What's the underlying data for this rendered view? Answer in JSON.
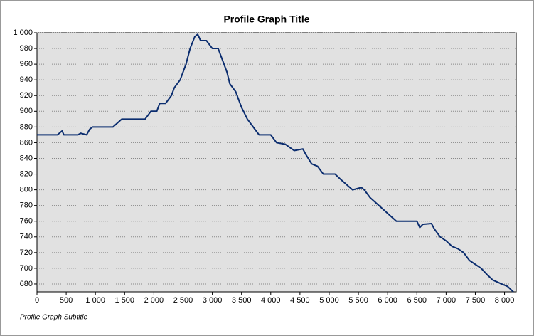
{
  "chart_data": {
    "type": "line",
    "title": "Profile Graph Title",
    "subtitle": "Profile Graph Subtitle",
    "color": "#0b2d6f",
    "grid": true,
    "x": [
      0,
      350,
      430,
      460,
      700,
      750,
      850,
      900,
      950,
      1300,
      1450,
      1850,
      1950,
      2050,
      2100,
      2200,
      2300,
      2350,
      2450,
      2550,
      2620,
      2700,
      2750,
      2800,
      2900,
      3000,
      3100,
      3150,
      3250,
      3300,
      3400,
      3500,
      3600,
      3700,
      3800,
      4000,
      4100,
      4250,
      4400,
      4550,
      4600,
      4700,
      4800,
      4900,
      5100,
      5200,
      5400,
      5550,
      5600,
      5700,
      5850,
      6000,
      6150,
      6500,
      6550,
      6600,
      6750,
      6800,
      6900,
      7000,
      7100,
      7200,
      7300,
      7400,
      7600,
      7700,
      7800,
      7950,
      8050,
      8150
    ],
    "values": [
      870,
      870,
      875,
      870,
      870,
      872,
      870,
      877,
      880,
      880,
      890,
      890,
      900,
      900,
      910,
      910,
      920,
      930,
      940,
      960,
      980,
      995,
      998,
      990,
      990,
      980,
      980,
      970,
      950,
      935,
      925,
      905,
      890,
      880,
      870,
      870,
      860,
      858,
      850,
      852,
      845,
      833,
      830,
      820,
      820,
      813,
      800,
      803,
      800,
      790,
      780,
      770,
      760,
      760,
      752,
      756,
      757,
      750,
      740,
      735,
      728,
      725,
      720,
      710,
      700,
      692,
      685,
      680,
      677,
      670
    ],
    "xlim": [
      0,
      8200
    ],
    "ylim": [
      670,
      1000
    ],
    "xticks": [
      0,
      500,
      {
        "value": 1000,
        "label": "1 000"
      },
      {
        "value": 1500,
        "label": "1 500"
      },
      {
        "value": 2000,
        "label": "2 000"
      },
      {
        "value": 2500,
        "label": "2 500"
      },
      {
        "value": 3000,
        "label": "3 000"
      },
      {
        "value": 3500,
        "label": "3 500"
      },
      {
        "value": 4000,
        "label": "4 000"
      },
      {
        "value": 4500,
        "label": "4 500"
      },
      {
        "value": 5000,
        "label": "5 000"
      },
      {
        "value": 5500,
        "label": "5 500"
      },
      {
        "value": 6000,
        "label": "6 000"
      },
      {
        "value": 6500,
        "label": "6 500"
      },
      {
        "value": 7000,
        "label": "7 000"
      },
      {
        "value": 7500,
        "label": "7 500"
      },
      {
        "value": 8000,
        "label": "8 000"
      }
    ],
    "yticks": [
      680,
      700,
      720,
      740,
      760,
      780,
      800,
      820,
      840,
      860,
      880,
      900,
      920,
      940,
      960,
      980,
      {
        "value": 1000,
        "label": "1 000"
      }
    ]
  }
}
